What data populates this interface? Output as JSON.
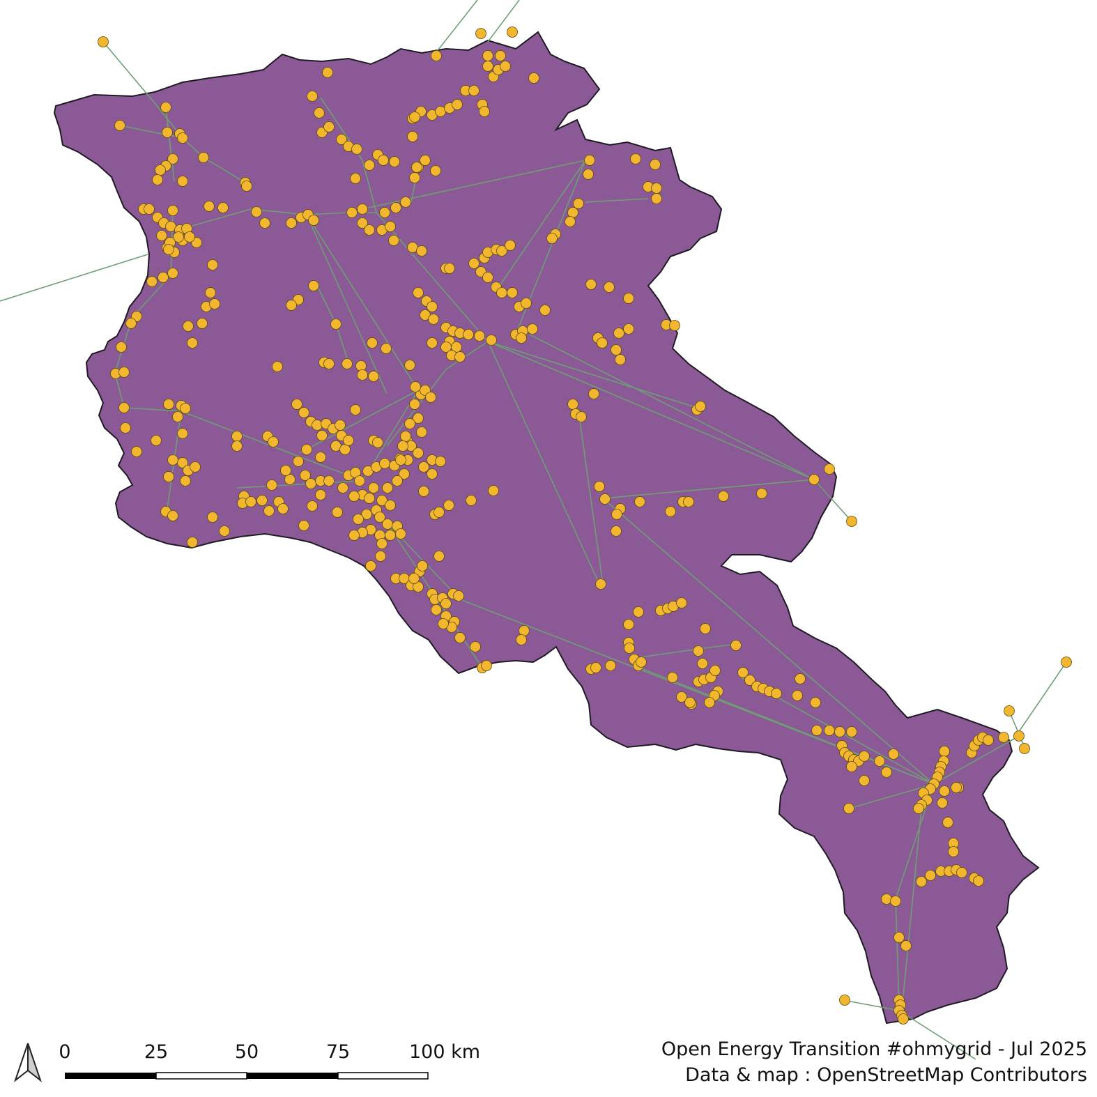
{
  "map": {
    "region_fill": "#8b5a96",
    "region_stroke": "#1e1a24",
    "line_color": "#6f9e75",
    "node_fill": "#f2b72f",
    "node_stroke": "#5a4a10"
  },
  "scale_bar": {
    "ticks": [
      "0",
      "25",
      "50",
      "75",
      "100 km"
    ]
  },
  "north_arrow": {
    "icon": "north-arrow-icon"
  },
  "attribution": {
    "line1": "Open Energy Transition #ohmygrid - Jul 2025",
    "line2": "Data & map : OpenStreetMap Contributors"
  }
}
